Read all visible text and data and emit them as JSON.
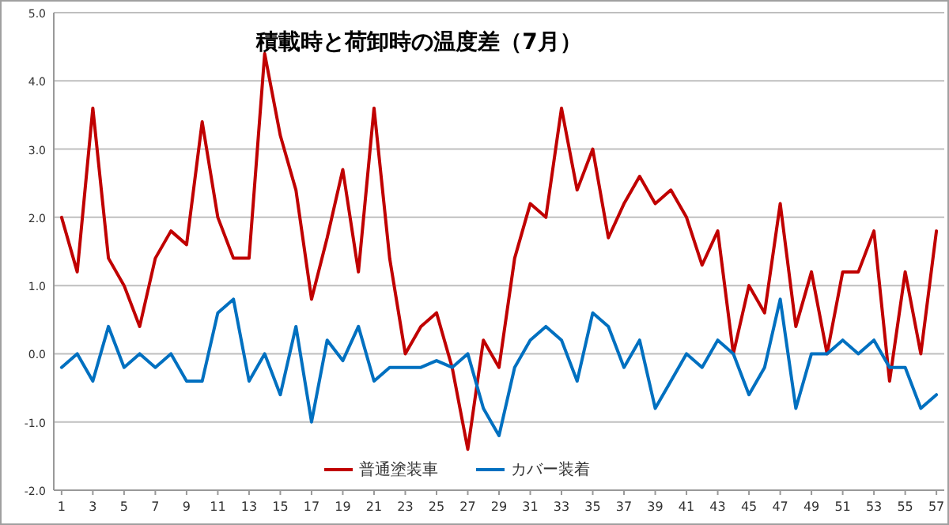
{
  "chart_data": {
    "type": "line",
    "title": "積載時と荷卸時の温度差（7月）",
    "x": [
      1,
      2,
      3,
      4,
      5,
      6,
      7,
      8,
      9,
      10,
      11,
      12,
      13,
      14,
      15,
      16,
      17,
      18,
      19,
      20,
      21,
      22,
      23,
      24,
      25,
      26,
      27,
      28,
      29,
      30,
      31,
      32,
      33,
      34,
      35,
      36,
      37,
      38,
      39,
      40,
      41,
      42,
      43,
      44,
      45,
      46,
      47,
      48,
      49,
      50,
      51,
      52,
      53,
      54,
      55,
      56,
      57
    ],
    "xlim": [
      0.5,
      57.5
    ],
    "xticks": [
      1,
      3,
      5,
      7,
      9,
      11,
      13,
      15,
      17,
      19,
      21,
      23,
      25,
      27,
      29,
      31,
      33,
      35,
      37,
      39,
      41,
      43,
      45,
      47,
      49,
      51,
      53,
      55,
      57
    ],
    "series": [
      {
        "name": "普通塗装車",
        "color": "#c00000",
        "values": [
          2.0,
          1.2,
          3.6,
          1.4,
          1.0,
          0.4,
          1.4,
          1.8,
          1.6,
          3.4,
          2.0,
          1.4,
          1.4,
          4.4,
          3.2,
          2.4,
          0.8,
          1.7,
          2.7,
          1.2,
          3.6,
          1.4,
          0.0,
          0.4,
          0.6,
          -0.2,
          -1.4,
          0.2,
          -0.2,
          1.4,
          2.2,
          2.0,
          3.6,
          2.4,
          3.0,
          1.7,
          2.2,
          2.6,
          2.2,
          2.4,
          2.0,
          1.3,
          1.8,
          0.0,
          1.0,
          0.6,
          2.2,
          0.4,
          1.2,
          0.0,
          1.2,
          1.2,
          1.8,
          -0.4,
          1.2,
          0.0,
          1.8
        ]
      },
      {
        "name": "カバー装着",
        "color": "#0070c0",
        "values": [
          -0.2,
          0.0,
          -0.4,
          0.4,
          -0.2,
          0.0,
          -0.2,
          0.0,
          -0.4,
          -0.4,
          0.6,
          0.8,
          -0.4,
          0.0,
          -0.6,
          0.4,
          -1.0,
          0.2,
          -0.1,
          0.4,
          -0.4,
          -0.2,
          -0.2,
          -0.2,
          -0.1,
          -0.2,
          0.0,
          -0.8,
          -1.2,
          -0.2,
          0.2,
          0.4,
          0.2,
          -0.4,
          0.6,
          0.4,
          -0.2,
          0.2,
          -0.8,
          -0.4,
          0.0,
          -0.2,
          0.2,
          0.0,
          -0.6,
          -0.2,
          0.8,
          -0.8,
          0.0,
          0.0,
          0.2,
          0.0,
          0.2,
          -0.2,
          -0.2,
          -0.8,
          -0.6
        ]
      }
    ],
    "ylim": [
      -2,
      5
    ],
    "yticks": [
      {
        "value": -2,
        "label": "-2.0"
      },
      {
        "value": -1,
        "label": "-1.0"
      },
      {
        "value": 0,
        "label": "0.0"
      },
      {
        "value": 1,
        "label": "1.0"
      },
      {
        "value": 2,
        "label": "2.0"
      },
      {
        "value": 3,
        "label": "3.0"
      },
      {
        "value": 4,
        "label": "4.0"
      },
      {
        "value": 5,
        "label": "5.0"
      }
    ],
    "grid": "y",
    "legend": "bottom",
    "marker": "none",
    "line_style": "solid"
  }
}
